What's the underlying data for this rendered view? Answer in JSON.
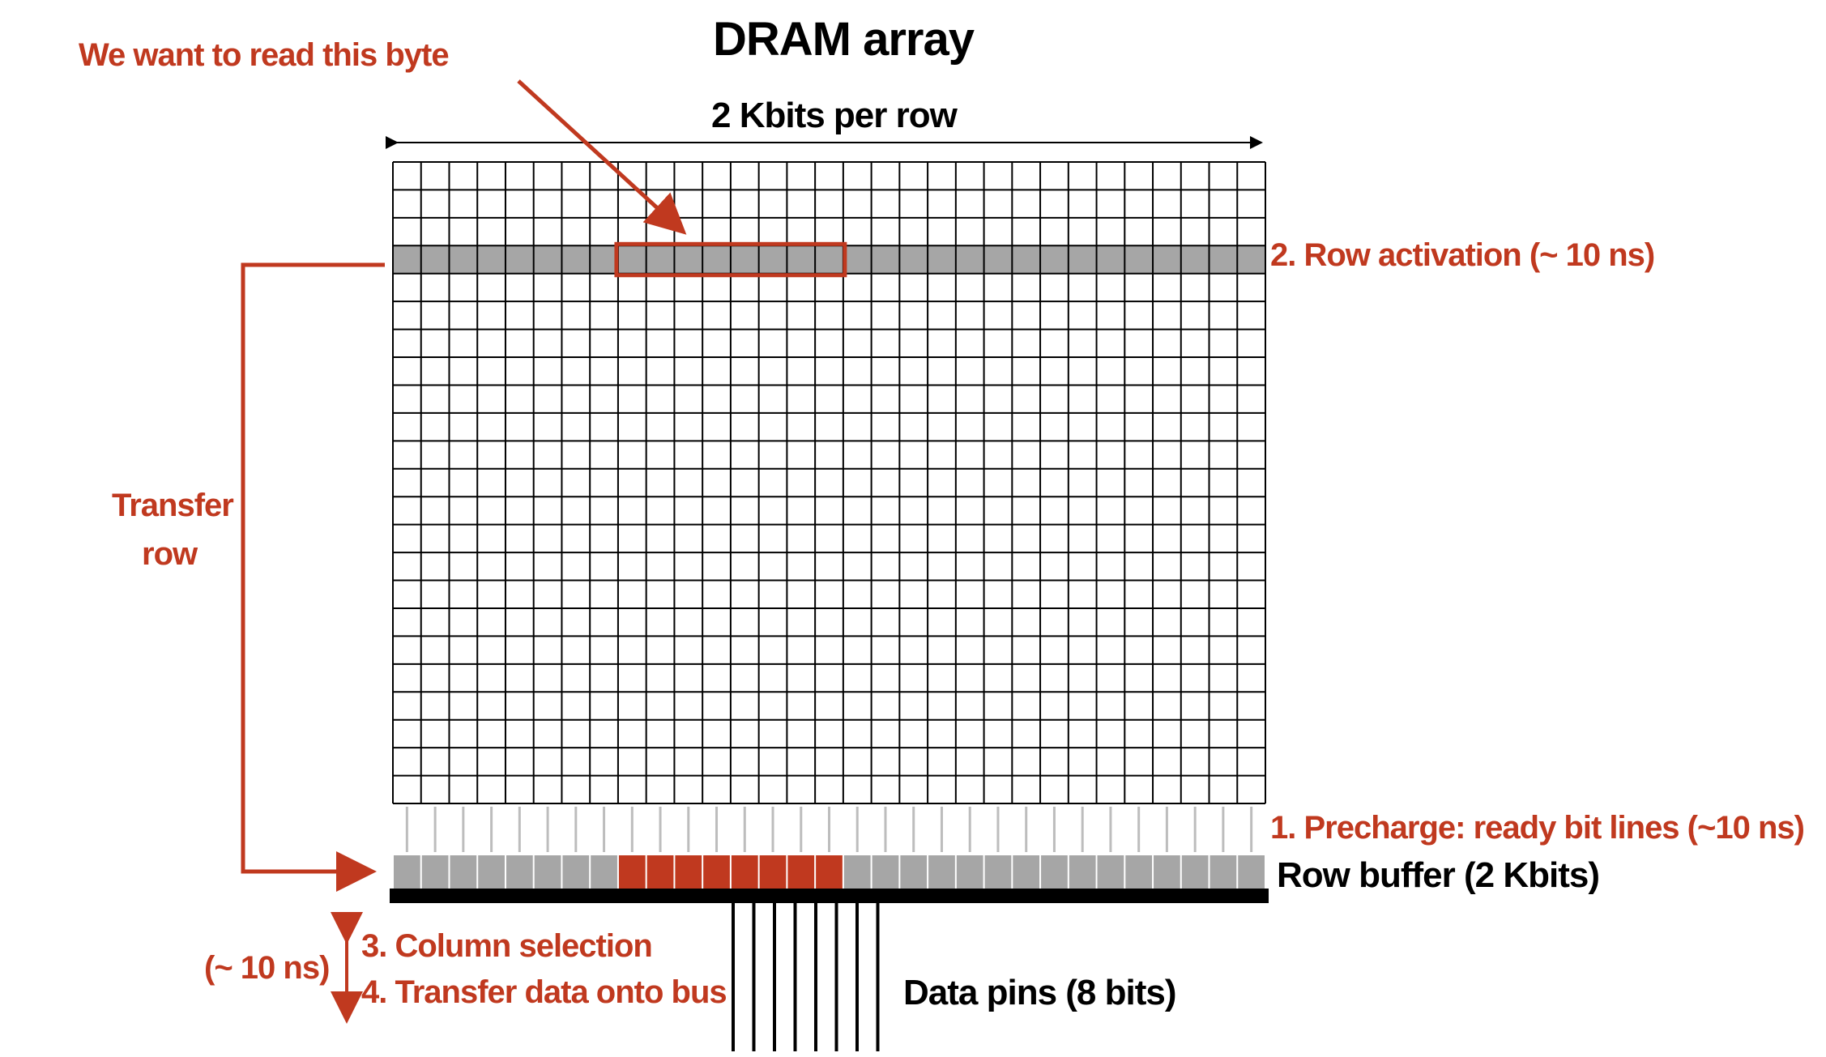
{
  "title": "DRAM array",
  "annotations": {
    "target_byte": "We want to read this byte",
    "row_width": "2 Kbits per row",
    "step2": "2. Row activation (~ 10 ns)",
    "step1": "1. Precharge: ready bit lines (~10 ns)",
    "row_buffer": "Row buffer (2 Kbits)",
    "transfer_line1": "Transfer",
    "transfer_line2": "row",
    "timing": "(~ 10 ns)",
    "step3": "3. Column selection",
    "step4": "4. Transfer data onto bus",
    "data_pins": "Data pins (8 bits)"
  },
  "colors": {
    "accent": "#c0391f",
    "grid_line": "#000000",
    "active_row": "#a6a6a6",
    "bit_line": "#bdbdbd",
    "buffer_bar": "#000000"
  },
  "array": {
    "columns": 31,
    "rows": 23,
    "active_row_index": 3,
    "target_first_column": 8,
    "target_column_count": 8,
    "data_pin_count": 8
  }
}
